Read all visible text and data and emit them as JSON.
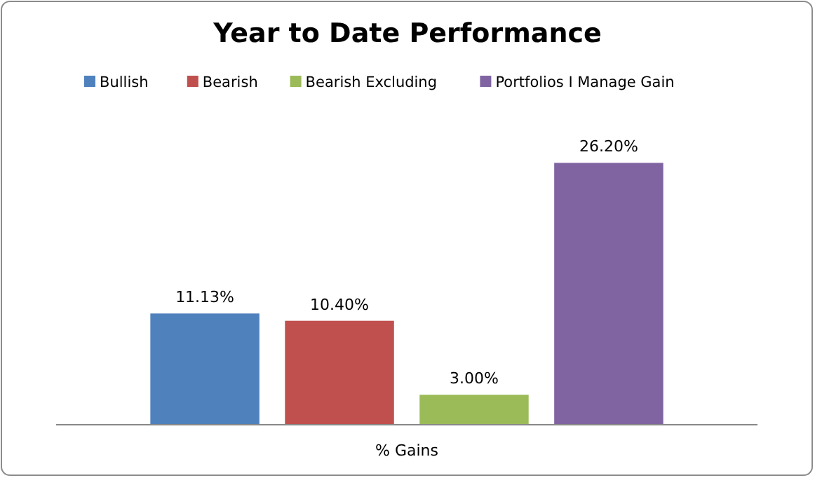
{
  "chart_data": {
    "type": "bar",
    "title": "Year to Date Performance",
    "categories": [
      null
    ],
    "xlabel": "% Gains",
    "legend": "top",
    "grid": false,
    "series": [
      {
        "name": "Bullish",
        "color": "#4f81bd",
        "values": [
          11.13
        ],
        "value_labels": [
          "11.13%"
        ]
      },
      {
        "name": "Bearish",
        "color": "#c0504d",
        "values": [
          10.4
        ],
        "value_labels": [
          "10.40%"
        ]
      },
      {
        "name": "Bearish Excluding",
        "color": "#9bbb59",
        "values": [
          3.0
        ],
        "value_labels": [
          "3.00%"
        ]
      },
      {
        "name": "Portfolios I Manage Gain",
        "color": "#8064a2",
        "values": [
          26.2
        ],
        "value_labels": [
          "26.20%"
        ]
      }
    ]
  }
}
